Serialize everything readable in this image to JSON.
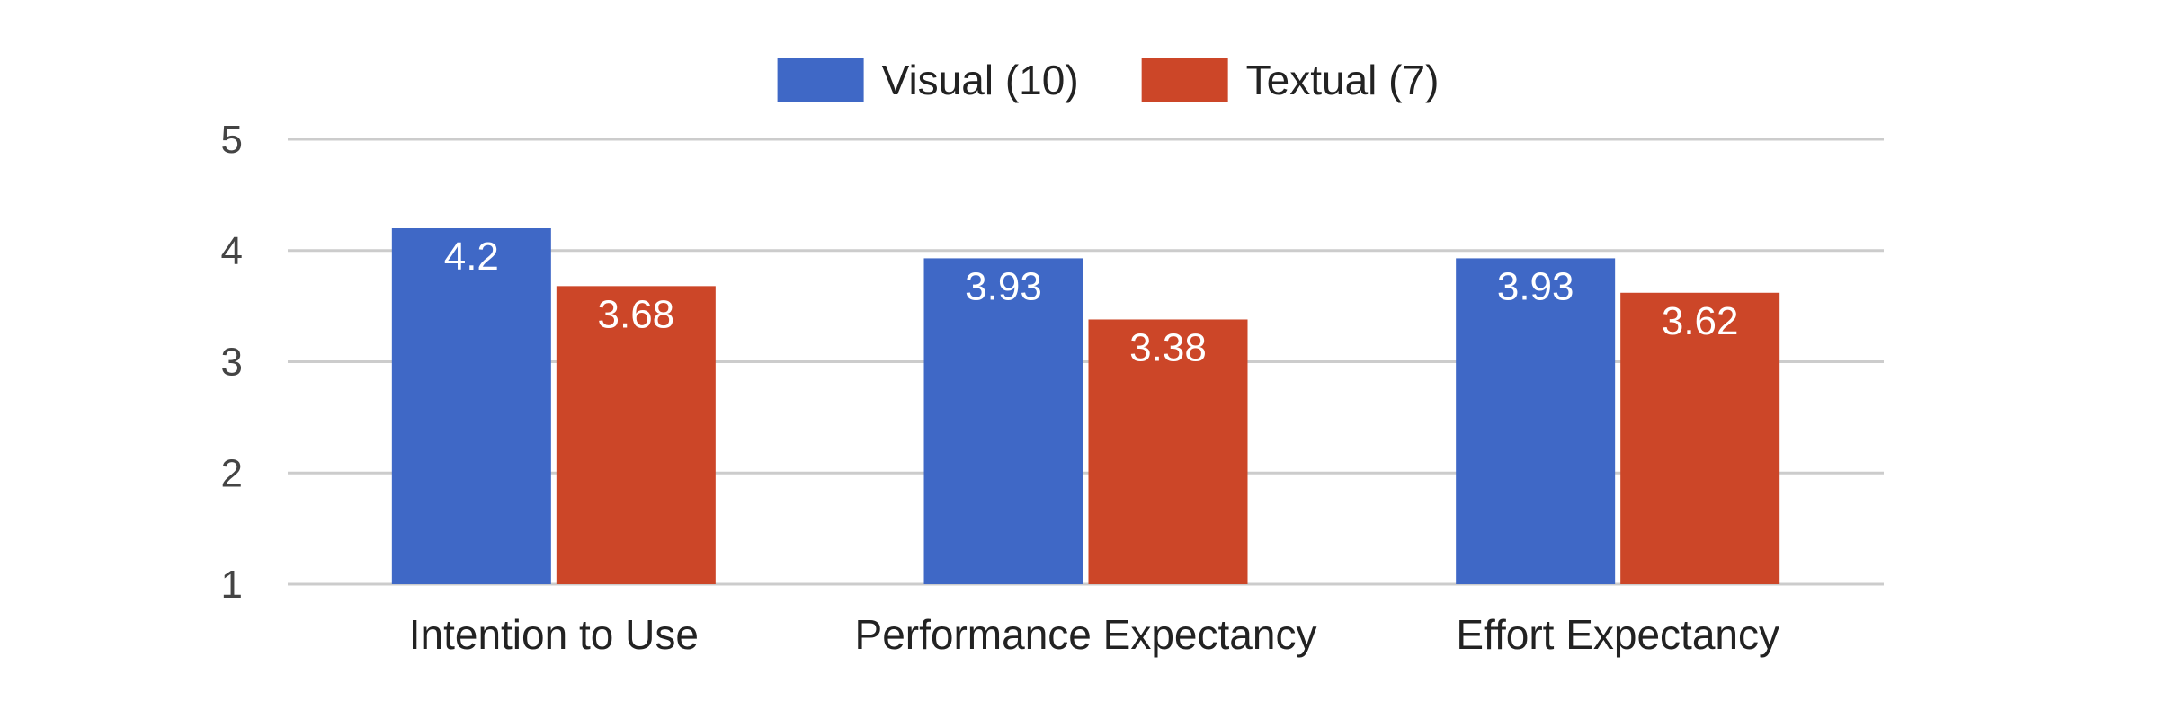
{
  "chart_data": {
    "type": "bar",
    "title": "",
    "xlabel": "",
    "ylabel": "",
    "ylim": [
      1,
      5
    ],
    "yticks": [
      1,
      2,
      3,
      4,
      5
    ],
    "grid": true,
    "legend_position": "top-center",
    "categories": [
      "Intention to Use",
      "Performance Expectancy",
      "Effort Expectancy"
    ],
    "series": [
      {
        "name": "Visual (10)",
        "color": "#3f68c6",
        "values": [
          4.2,
          3.93,
          3.93
        ],
        "labels": [
          "4.2",
          "3.93",
          "3.93"
        ]
      },
      {
        "name": "Textual (7)",
        "color": "#cc4628",
        "values": [
          3.68,
          3.38,
          3.62
        ],
        "labels": [
          "3.68",
          "3.38",
          "3.62"
        ]
      }
    ]
  }
}
